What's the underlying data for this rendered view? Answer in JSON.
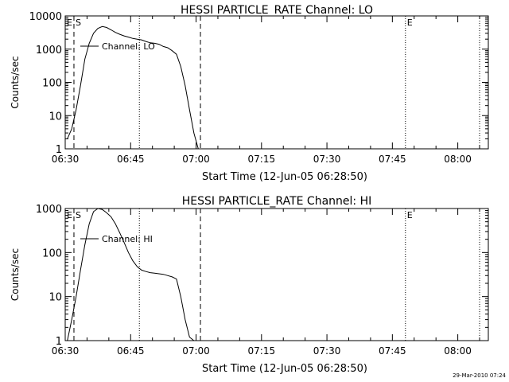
{
  "chart_data": [
    {
      "type": "line",
      "title": "HESSI PARTICLE_RATE Channel: LO",
      "xlabel": "Start Time (12-Jun-05 06:28:50)",
      "ylabel": "Counts/sec",
      "y_scale": "log",
      "ylim": [
        1,
        10000
      ],
      "xlim": [
        "06:30",
        "08:07"
      ],
      "x_ticks": [
        "06:30",
        "06:45",
        "07:00",
        "07:15",
        "07:30",
        "07:45",
        "08:00"
      ],
      "y_ticks": [
        "1",
        "10",
        "100",
        "1000",
        "10000"
      ],
      "grid": false,
      "legend": {
        "position": "top-left",
        "label": "Channel: LO"
      },
      "markers": [
        {
          "label": "E",
          "time": "06:30",
          "style": "dotted"
        },
        {
          "label": "S",
          "time": "06:32",
          "style": "dashed"
        },
        {
          "label": "",
          "time": "06:47",
          "style": "dotted"
        },
        {
          "label": "",
          "time": "07:01",
          "style": "dashed"
        },
        {
          "label": "E",
          "time": "07:48",
          "style": "dotted"
        },
        {
          "label": "",
          "time": "08:05",
          "style": "dotted"
        }
      ],
      "series": [
        {
          "name": "Channel: LO",
          "x": [
            "06:30:30",
            "06:31:30",
            "06:32:30",
            "06:33:30",
            "06:34:30",
            "06:35:30",
            "06:36:30",
            "06:37:30",
            "06:38:30",
            "06:39:30",
            "06:40:30",
            "06:41:30",
            "06:42:30",
            "06:43:30",
            "06:44:30",
            "06:45:30",
            "06:46:30",
            "06:47:30",
            "06:48:30",
            "06:49:30",
            "06:50:30",
            "06:51:30",
            "06:52:30",
            "06:53:30",
            "06:54:30",
            "06:55:30",
            "06:56:30",
            "06:57:30",
            "06:58:30",
            "06:59:30",
            "07:00:30"
          ],
          "values": [
            2,
            4,
            15,
            80,
            500,
            1500,
            3000,
            4200,
            4800,
            4500,
            3800,
            3200,
            2800,
            2500,
            2300,
            2100,
            2000,
            1900,
            1700,
            1550,
            1500,
            1400,
            1200,
            1100,
            900,
            700,
            300,
            80,
            15,
            3,
            1
          ]
        }
      ]
    },
    {
      "type": "line",
      "title": "HESSI PARTICLE_RATE Channel: HI",
      "xlabel": "Start Time (12-Jun-05 06:28:50)",
      "ylabel": "Counts/sec",
      "y_scale": "log",
      "ylim": [
        1,
        1000
      ],
      "xlim": [
        "06:30",
        "08:07"
      ],
      "x_ticks": [
        "06:30",
        "06:45",
        "07:00",
        "07:15",
        "07:30",
        "07:45",
        "08:00"
      ],
      "y_ticks": [
        "1",
        "10",
        "100",
        "1000"
      ],
      "grid": false,
      "legend": {
        "position": "top-left",
        "label": "Channel: HI"
      },
      "markers": [
        {
          "label": "E",
          "time": "06:30",
          "style": "dotted"
        },
        {
          "label": "S",
          "time": "06:32",
          "style": "dashed"
        },
        {
          "label": "",
          "time": "06:47",
          "style": "dotted"
        },
        {
          "label": "",
          "time": "07:01",
          "style": "dashed"
        },
        {
          "label": "E",
          "time": "07:48",
          "style": "dotted"
        },
        {
          "label": "",
          "time": "08:05",
          "style": "dotted"
        }
      ],
      "series": [
        {
          "name": "Channel: HI",
          "x": [
            "06:30:30",
            "06:31:30",
            "06:32:30",
            "06:33:30",
            "06:34:30",
            "06:35:30",
            "06:36:30",
            "06:37:30",
            "06:38:30",
            "06:39:30",
            "06:40:30",
            "06:41:30",
            "06:42:30",
            "06:43:30",
            "06:44:30",
            "06:45:30",
            "06:46:30",
            "06:47:30",
            "06:48:30",
            "06:49:30",
            "06:50:30",
            "06:51:30",
            "06:52:30",
            "06:53:30",
            "06:54:30",
            "06:55:30",
            "06:56:30",
            "06:57:30",
            "06:58:30",
            "06:59:30"
          ],
          "values": [
            1,
            3,
            10,
            40,
            150,
            450,
            850,
            1000,
            950,
            800,
            650,
            450,
            280,
            170,
            100,
            65,
            48,
            40,
            37,
            35,
            34,
            33,
            32,
            30,
            28,
            25,
            10,
            3,
            1.2,
            1
          ]
        }
      ]
    }
  ],
  "footer": {
    "timestamp": "29-Mar-2010 07:24"
  }
}
